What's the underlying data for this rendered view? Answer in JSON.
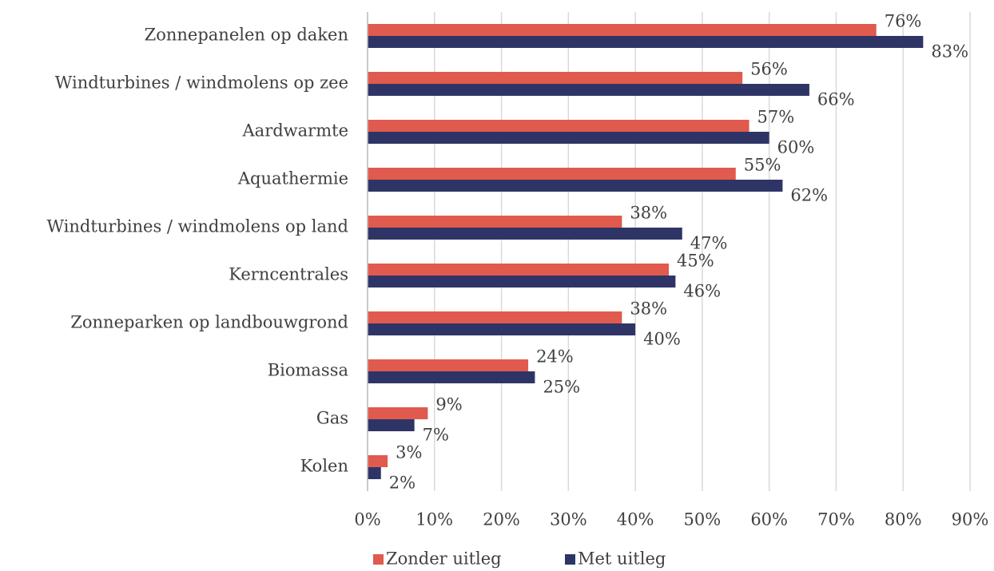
{
  "chart_data": {
    "type": "bar",
    "orientation": "horizontal",
    "categories": [
      "Zonnepanelen op daken",
      "Windturbines / windmolens op zee",
      "Aardwarmte",
      "Aquathermie",
      "Windturbines / windmolens op land",
      "Kerncentrales",
      "Zonneparken op landbouwgrond",
      "Biomassa",
      "Gas",
      "Kolen"
    ],
    "series": [
      {
        "name": "Zonder uitleg",
        "color": "#e05a4e",
        "values": [
          76,
          56,
          57,
          55,
          38,
          45,
          38,
          24,
          9,
          3
        ],
        "value_labels": [
          "76%",
          "56%",
          "57%",
          "55%",
          "38%",
          "45%",
          "38%",
          "24%",
          "9%",
          "3%"
        ]
      },
      {
        "name": "Met uitleg",
        "color": "#2e3566",
        "values": [
          83,
          66,
          60,
          62,
          47,
          46,
          40,
          25,
          7,
          2
        ],
        "value_labels": [
          "83%",
          "66%",
          "60%",
          "62%",
          "47%",
          "46%",
          "40%",
          "25%",
          "7%",
          "2%"
        ]
      }
    ],
    "xlim": [
      0,
      90
    ],
    "xticks": [
      {
        "value": 0,
        "label": "0%"
      },
      {
        "value": 10,
        "label": "10%"
      },
      {
        "value": 20,
        "label": "20%"
      },
      {
        "value": 30,
        "label": "30%"
      },
      {
        "value": 40,
        "label": "40%"
      },
      {
        "value": 50,
        "label": "50%"
      },
      {
        "value": 60,
        "label": "60%"
      },
      {
        "value": 70,
        "label": "70%"
      },
      {
        "value": 80,
        "label": "80%"
      },
      {
        "value": 90,
        "label": "90%"
      }
    ],
    "grid": true,
    "legend": "bottom"
  }
}
